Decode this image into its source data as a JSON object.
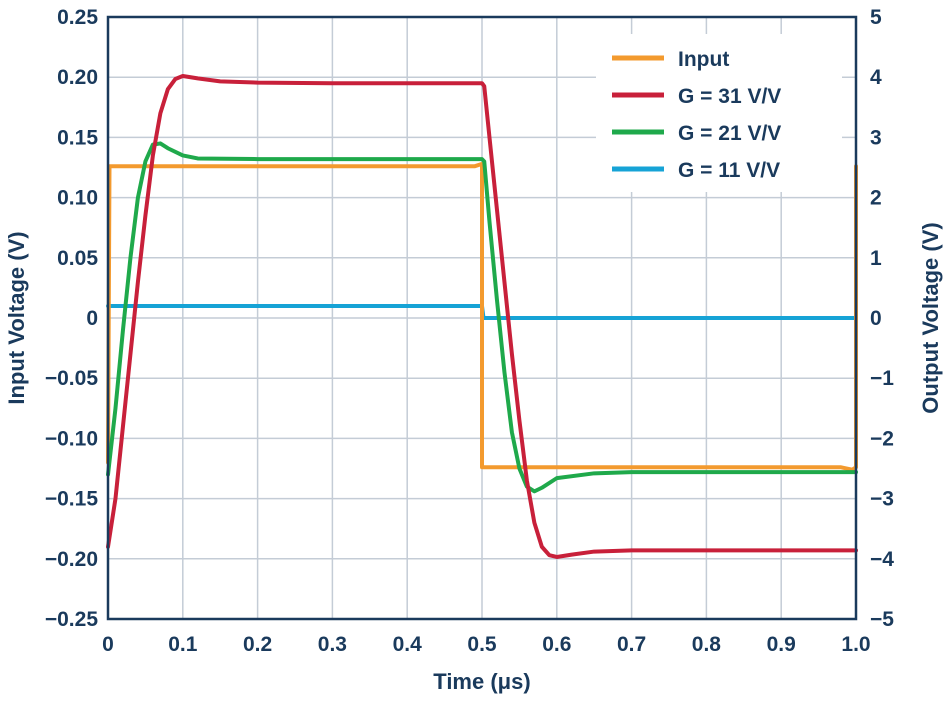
{
  "chart_data": {
    "type": "line",
    "xlabel": "Time (μs)",
    "ylabel_left": "Input Voltage (V)",
    "ylabel_right": "Output Voltage (V)",
    "xlim": [
      0,
      1.0
    ],
    "ylim_left": [
      -0.25,
      0.25
    ],
    "ylim_right": [
      -5,
      5
    ],
    "x_ticks": [
      "0",
      "0.1",
      "0.2",
      "0.3",
      "0.4",
      "0.5",
      "0.6",
      "0.7",
      "0.8",
      "0.9",
      "1.0"
    ],
    "y_left_ticks": [
      "0.25",
      "0.20",
      "0.15",
      "0.10",
      "0.05",
      "0",
      "−0.05",
      "−0.10",
      "−0.15",
      "−0.20",
      "−0.25"
    ],
    "y_right_ticks": [
      "5",
      "4",
      "3",
      "2",
      "1",
      "0",
      "−1",
      "−2",
      "−3",
      "−4",
      "−5"
    ],
    "grid": true,
    "legend_position": "top-right",
    "series": [
      {
        "name": "Input",
        "axis": "left",
        "color": "#f39a2e",
        "points": [
          [
            0.0,
            -0.12
          ],
          [
            0.002,
            0.126
          ],
          [
            0.49,
            0.126
          ],
          [
            0.5,
            0.128
          ],
          [
            0.5,
            -0.124
          ],
          [
            0.98,
            -0.124
          ],
          [
            0.995,
            -0.126
          ],
          [
            1.0,
            -0.124
          ],
          [
            1.0,
            0.126
          ]
        ]
      },
      {
        "name": "G = 31 V/V",
        "axis": "right",
        "color": "#c8203a",
        "points": [
          [
            0.0,
            -3.8
          ],
          [
            0.01,
            -3.0
          ],
          [
            0.02,
            -1.8
          ],
          [
            0.03,
            -0.6
          ],
          [
            0.04,
            0.6
          ],
          [
            0.05,
            1.7
          ],
          [
            0.06,
            2.7
          ],
          [
            0.07,
            3.4
          ],
          [
            0.08,
            3.8
          ],
          [
            0.09,
            3.97
          ],
          [
            0.1,
            4.02
          ],
          [
            0.12,
            3.98
          ],
          [
            0.15,
            3.93
          ],
          [
            0.2,
            3.91
          ],
          [
            0.3,
            3.9
          ],
          [
            0.4,
            3.9
          ],
          [
            0.5,
            3.9
          ],
          [
            0.503,
            3.85
          ],
          [
            0.51,
            3.0
          ],
          [
            0.52,
            1.8
          ],
          [
            0.53,
            0.6
          ],
          [
            0.54,
            -0.6
          ],
          [
            0.55,
            -1.7
          ],
          [
            0.56,
            -2.7
          ],
          [
            0.57,
            -3.4
          ],
          [
            0.58,
            -3.8
          ],
          [
            0.59,
            -3.94
          ],
          [
            0.6,
            -3.97
          ],
          [
            0.62,
            -3.93
          ],
          [
            0.65,
            -3.88
          ],
          [
            0.7,
            -3.86
          ],
          [
            0.8,
            -3.86
          ],
          [
            0.9,
            -3.86
          ],
          [
            1.0,
            -3.86
          ]
        ]
      },
      {
        "name": "G = 21 V/V",
        "axis": "right",
        "color": "#1fa94b",
        "points": [
          [
            0.0,
            -2.6
          ],
          [
            0.01,
            -1.5
          ],
          [
            0.02,
            -0.2
          ],
          [
            0.03,
            1.0
          ],
          [
            0.04,
            2.0
          ],
          [
            0.05,
            2.6
          ],
          [
            0.06,
            2.88
          ],
          [
            0.07,
            2.9
          ],
          [
            0.08,
            2.82
          ],
          [
            0.1,
            2.7
          ],
          [
            0.12,
            2.65
          ],
          [
            0.2,
            2.64
          ],
          [
            0.3,
            2.64
          ],
          [
            0.4,
            2.64
          ],
          [
            0.5,
            2.64
          ],
          [
            0.503,
            2.6
          ],
          [
            0.51,
            1.6
          ],
          [
            0.52,
            0.3
          ],
          [
            0.53,
            -0.9
          ],
          [
            0.54,
            -1.9
          ],
          [
            0.55,
            -2.5
          ],
          [
            0.56,
            -2.8
          ],
          [
            0.57,
            -2.88
          ],
          [
            0.58,
            -2.82
          ],
          [
            0.6,
            -2.66
          ],
          [
            0.65,
            -2.58
          ],
          [
            0.7,
            -2.56
          ],
          [
            0.8,
            -2.56
          ],
          [
            0.9,
            -2.56
          ],
          [
            1.0,
            -2.56
          ]
        ]
      },
      {
        "name": "G = 11 V/V",
        "axis": "right",
        "color": "#16a3d6",
        "points": [
          [
            0.0,
            0.2
          ],
          [
            0.5,
            0.2
          ],
          [
            0.502,
            0.0
          ],
          [
            1.0,
            0.0
          ]
        ]
      }
    ]
  }
}
